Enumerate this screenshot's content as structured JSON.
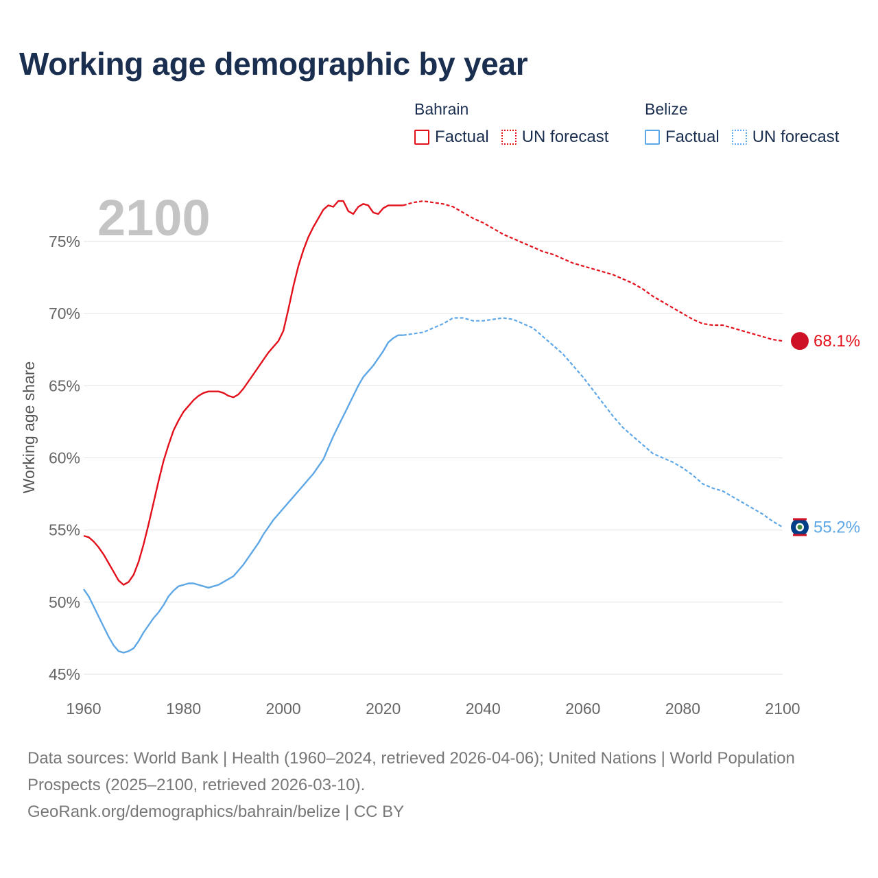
{
  "title": "Working age demographic by year",
  "legend": {
    "groups": [
      {
        "name": "Bahrain",
        "color": "#e3101c",
        "items": [
          {
            "label": "Factual",
            "style": "solid"
          },
          {
            "label": "UN forecast",
            "style": "dotted"
          }
        ]
      },
      {
        "name": "Belize",
        "color": "#5ea7e6",
        "items": [
          {
            "label": "Factual",
            "style": "solid"
          },
          {
            "label": "UN forecast",
            "style": "dotted"
          }
        ]
      }
    ]
  },
  "year_watermark": "2100",
  "end_labels": {
    "bahrain": "68.1%",
    "belize": "55.2%"
  },
  "chart_data": {
    "type": "line",
    "title": "Working age demographic by year",
    "xlabel": "",
    "ylabel": "Working age share",
    "xlim": [
      1960,
      2100
    ],
    "ylim": [
      44.5,
      78.5
    ],
    "x_ticks": [
      1960,
      1980,
      2000,
      2020,
      2040,
      2060,
      2080,
      2100
    ],
    "x_tick_labels": [
      "1960",
      "1980",
      "2000",
      "2020",
      "2040",
      "2060",
      "2080",
      "2100"
    ],
    "y_ticks": [
      45,
      50,
      55,
      60,
      65,
      70,
      75
    ],
    "y_tick_labels": [
      "45%",
      "50%",
      "55%",
      "60%",
      "65%",
      "70%",
      "75%"
    ],
    "forecast_start": 2024,
    "series": [
      {
        "name": "Bahrain",
        "color": "#e3101c",
        "points": [
          [
            1960,
            54.6
          ],
          [
            1961,
            54.5
          ],
          [
            1962,
            54.2
          ],
          [
            1963,
            53.8
          ],
          [
            1964,
            53.3
          ],
          [
            1965,
            52.7
          ],
          [
            1966,
            52.1
          ],
          [
            1967,
            51.5
          ],
          [
            1968,
            51.2
          ],
          [
            1969,
            51.4
          ],
          [
            1970,
            51.9
          ],
          [
            1971,
            52.8
          ],
          [
            1972,
            54.0
          ],
          [
            1973,
            55.4
          ],
          [
            1974,
            56.9
          ],
          [
            1975,
            58.4
          ],
          [
            1976,
            59.8
          ],
          [
            1977,
            60.9
          ],
          [
            1978,
            61.9
          ],
          [
            1979,
            62.6
          ],
          [
            1980,
            63.2
          ],
          [
            1981,
            63.6
          ],
          [
            1982,
            64.0
          ],
          [
            1983,
            64.3
          ],
          [
            1984,
            64.5
          ],
          [
            1985,
            64.6
          ],
          [
            1986,
            64.6
          ],
          [
            1987,
            64.6
          ],
          [
            1988,
            64.5
          ],
          [
            1989,
            64.3
          ],
          [
            1990,
            64.2
          ],
          [
            1991,
            64.4
          ],
          [
            1992,
            64.8
          ],
          [
            1993,
            65.3
          ],
          [
            1994,
            65.8
          ],
          [
            1995,
            66.3
          ],
          [
            1996,
            66.8
          ],
          [
            1997,
            67.3
          ],
          [
            1998,
            67.7
          ],
          [
            1999,
            68.1
          ],
          [
            2000,
            68.8
          ],
          [
            2001,
            70.3
          ],
          [
            2002,
            71.9
          ],
          [
            2003,
            73.3
          ],
          [
            2004,
            74.4
          ],
          [
            2005,
            75.3
          ],
          [
            2006,
            76.0
          ],
          [
            2007,
            76.6
          ],
          [
            2008,
            77.2
          ],
          [
            2009,
            77.5
          ],
          [
            2010,
            77.4
          ],
          [
            2011,
            77.8
          ],
          [
            2012,
            77.8
          ],
          [
            2013,
            77.1
          ],
          [
            2014,
            76.9
          ],
          [
            2015,
            77.4
          ],
          [
            2016,
            77.6
          ],
          [
            2017,
            77.5
          ],
          [
            2018,
            77.0
          ],
          [
            2019,
            76.9
          ],
          [
            2020,
            77.3
          ],
          [
            2021,
            77.5
          ],
          [
            2022,
            77.5
          ],
          [
            2023,
            77.5
          ],
          [
            2024,
            77.5
          ],
          [
            2026,
            77.7
          ],
          [
            2028,
            77.8
          ],
          [
            2030,
            77.7
          ],
          [
            2032,
            77.6
          ],
          [
            2034,
            77.4
          ],
          [
            2036,
            77.0
          ],
          [
            2038,
            76.6
          ],
          [
            2040,
            76.3
          ],
          [
            2042,
            75.9
          ],
          [
            2044,
            75.5
          ],
          [
            2046,
            75.2
          ],
          [
            2048,
            74.9
          ],
          [
            2050,
            74.6
          ],
          [
            2052,
            74.3
          ],
          [
            2054,
            74.1
          ],
          [
            2056,
            73.8
          ],
          [
            2058,
            73.5
          ],
          [
            2060,
            73.3
          ],
          [
            2062,
            73.1
          ],
          [
            2064,
            72.9
          ],
          [
            2066,
            72.7
          ],
          [
            2068,
            72.4
          ],
          [
            2070,
            72.1
          ],
          [
            2072,
            71.7
          ],
          [
            2074,
            71.2
          ],
          [
            2076,
            70.8
          ],
          [
            2078,
            70.4
          ],
          [
            2080,
            70.0
          ],
          [
            2082,
            69.6
          ],
          [
            2084,
            69.3
          ],
          [
            2086,
            69.2
          ],
          [
            2088,
            69.2
          ],
          [
            2090,
            69.0
          ],
          [
            2092,
            68.8
          ],
          [
            2094,
            68.6
          ],
          [
            2096,
            68.4
          ],
          [
            2098,
            68.2
          ],
          [
            2100,
            68.1
          ]
        ]
      },
      {
        "name": "Belize",
        "color": "#5ea7e6",
        "points": [
          [
            1960,
            50.9
          ],
          [
            1961,
            50.4
          ],
          [
            1962,
            49.7
          ],
          [
            1963,
            49.0
          ],
          [
            1964,
            48.3
          ],
          [
            1965,
            47.6
          ],
          [
            1966,
            47.0
          ],
          [
            1967,
            46.6
          ],
          [
            1968,
            46.5
          ],
          [
            1969,
            46.6
          ],
          [
            1970,
            46.8
          ],
          [
            1971,
            47.3
          ],
          [
            1972,
            47.9
          ],
          [
            1973,
            48.4
          ],
          [
            1974,
            48.9
          ],
          [
            1975,
            49.3
          ],
          [
            1976,
            49.8
          ],
          [
            1977,
            50.4
          ],
          [
            1978,
            50.8
          ],
          [
            1979,
            51.1
          ],
          [
            1980,
            51.2
          ],
          [
            1981,
            51.3
          ],
          [
            1982,
            51.3
          ],
          [
            1983,
            51.2
          ],
          [
            1984,
            51.1
          ],
          [
            1985,
            51.0
          ],
          [
            1986,
            51.1
          ],
          [
            1987,
            51.2
          ],
          [
            1988,
            51.4
          ],
          [
            1989,
            51.6
          ],
          [
            1990,
            51.8
          ],
          [
            1991,
            52.2
          ],
          [
            1992,
            52.6
          ],
          [
            1993,
            53.1
          ],
          [
            1994,
            53.6
          ],
          [
            1995,
            54.1
          ],
          [
            1996,
            54.7
          ],
          [
            1997,
            55.2
          ],
          [
            1998,
            55.7
          ],
          [
            1999,
            56.1
          ],
          [
            2000,
            56.5
          ],
          [
            2001,
            56.9
          ],
          [
            2002,
            57.3
          ],
          [
            2003,
            57.7
          ],
          [
            2004,
            58.1
          ],
          [
            2005,
            58.5
          ],
          [
            2006,
            58.9
          ],
          [
            2007,
            59.4
          ],
          [
            2008,
            59.9
          ],
          [
            2009,
            60.7
          ],
          [
            2010,
            61.5
          ],
          [
            2011,
            62.2
          ],
          [
            2012,
            62.9
          ],
          [
            2013,
            63.6
          ],
          [
            2014,
            64.3
          ],
          [
            2015,
            65.0
          ],
          [
            2016,
            65.6
          ],
          [
            2017,
            66.0
          ],
          [
            2018,
            66.4
          ],
          [
            2019,
            66.9
          ],
          [
            2020,
            67.4
          ],
          [
            2021,
            68.0
          ],
          [
            2022,
            68.3
          ],
          [
            2023,
            68.5
          ],
          [
            2024,
            68.5
          ],
          [
            2026,
            68.6
          ],
          [
            2028,
            68.7
          ],
          [
            2030,
            69.0
          ],
          [
            2032,
            69.3
          ],
          [
            2034,
            69.7
          ],
          [
            2036,
            69.7
          ],
          [
            2038,
            69.5
          ],
          [
            2040,
            69.5
          ],
          [
            2042,
            69.6
          ],
          [
            2044,
            69.7
          ],
          [
            2046,
            69.6
          ],
          [
            2048,
            69.3
          ],
          [
            2050,
            69.0
          ],
          [
            2052,
            68.4
          ],
          [
            2054,
            67.8
          ],
          [
            2056,
            67.2
          ],
          [
            2058,
            66.4
          ],
          [
            2060,
            65.6
          ],
          [
            2062,
            64.7
          ],
          [
            2064,
            63.8
          ],
          [
            2066,
            62.9
          ],
          [
            2068,
            62.1
          ],
          [
            2070,
            61.5
          ],
          [
            2072,
            60.9
          ],
          [
            2074,
            60.3
          ],
          [
            2076,
            60.0
          ],
          [
            2078,
            59.7
          ],
          [
            2080,
            59.3
          ],
          [
            2082,
            58.8
          ],
          [
            2084,
            58.2
          ],
          [
            2086,
            57.9
          ],
          [
            2088,
            57.7
          ],
          [
            2090,
            57.3
          ],
          [
            2092,
            56.9
          ],
          [
            2094,
            56.5
          ],
          [
            2096,
            56.1
          ],
          [
            2098,
            55.6
          ],
          [
            2100,
            55.2
          ]
        ]
      }
    ]
  }
}
